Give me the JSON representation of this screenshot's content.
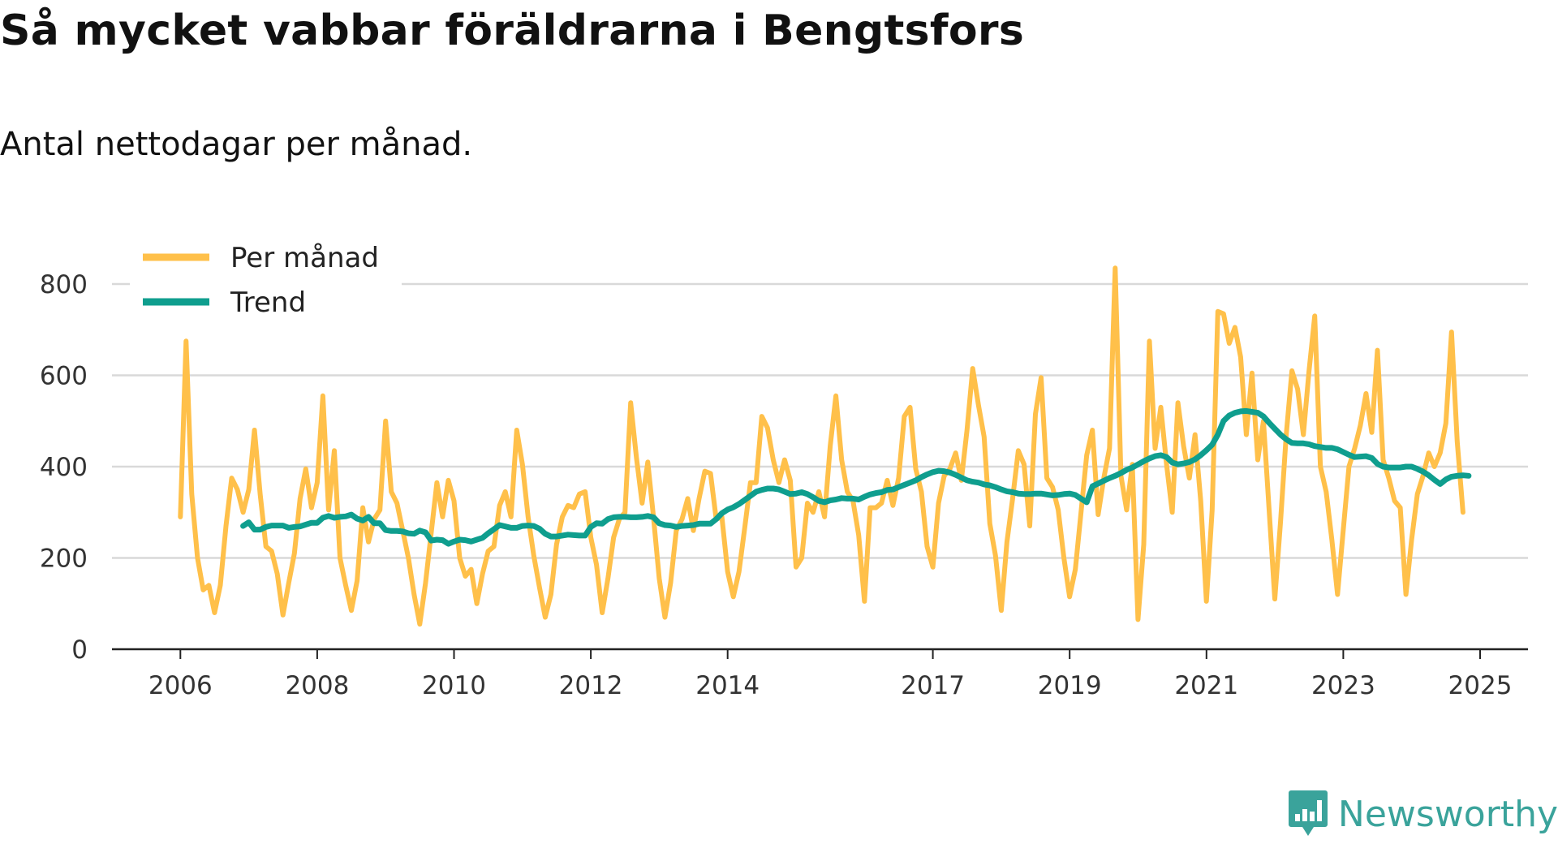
{
  "title": "Så mycket vabbar föräldrarna i Bengtsfors",
  "subtitle": "Antal nettodagar per månad.",
  "brand": {
    "name": "Newsworthy",
    "icon": "newsworthy-logo-icon",
    "color": "#3aa39b"
  },
  "colors": {
    "per_manad": "#ffc04a",
    "trend": "#0f9e8e",
    "grid": "#d9d9d9",
    "axis": "#222222"
  },
  "chart_data": {
    "type": "line",
    "title": "Så mycket vabbar föräldrarna i Bengtsfors",
    "subtitle": "Antal nettodagar per månad.",
    "xlabel": "",
    "ylabel": "",
    "xlim": [
      2005.0,
      2025.7
    ],
    "ylim": [
      0,
      800
    ],
    "yticks": [
      0,
      200,
      400,
      600,
      800
    ],
    "xticks": [
      {
        "value": 2006,
        "label": "2006"
      },
      {
        "value": 2008,
        "label": "2008"
      },
      {
        "value": 2010,
        "label": "2010"
      },
      {
        "value": 2012,
        "label": "2012"
      },
      {
        "value": 2014,
        "label": "2014"
      },
      {
        "value": 2017,
        "label": "2017"
      },
      {
        "value": 2019,
        "label": "2019"
      },
      {
        "value": 2021,
        "label": "2021"
      },
      {
        "value": 2023,
        "label": "2023"
      },
      {
        "value": 2025,
        "label": "2025"
      }
    ],
    "grid": true,
    "legend_position": "top-left",
    "series": [
      {
        "name": "Per månad",
        "color": "#ffc04a",
        "start_year": 2006.0,
        "step": 0.08333,
        "values": [
          290,
          675,
          340,
          200,
          130,
          140,
          80,
          140,
          270,
          375,
          350,
          300,
          350,
          480,
          340,
          225,
          215,
          165,
          75,
          145,
          210,
          330,
          395,
          310,
          365,
          555,
          305,
          435,
          200,
          140,
          85,
          150,
          310,
          235,
          285,
          305,
          500,
          345,
          320,
          260,
          200,
          120,
          55,
          145,
          255,
          365,
          290,
          370,
          325,
          200,
          160,
          175,
          100,
          165,
          215,
          225,
          315,
          345,
          290,
          480,
          405,
          290,
          205,
          135,
          70,
          120,
          230,
          290,
          315,
          310,
          340,
          345,
          245,
          185,
          80,
          155,
          245,
          285,
          300,
          540,
          420,
          320,
          410,
          290,
          155,
          70,
          145,
          260,
          285,
          330,
          260,
          330,
          390,
          385,
          285,
          290,
          170,
          115,
          170,
          265,
          365,
          365,
          510,
          485,
          415,
          365,
          415,
          370,
          180,
          200,
          320,
          300,
          345,
          290,
          445,
          555,
          415,
          345,
          325,
          250,
          105,
          310,
          310,
          320,
          370,
          315,
          375,
          510,
          530,
          395,
          345,
          225,
          180,
          320,
          380,
          395,
          430,
          370,
          480,
          615,
          535,
          465,
          275,
          205,
          85,
          235,
          330,
          435,
          405,
          270,
          515,
          595,
          375,
          355,
          305,
          200,
          115,
          175,
          300,
          425,
          480,
          295,
          375,
          440,
          835,
          380,
          305,
          405,
          65,
          230,
          675,
          440,
          530,
          405,
          300,
          540,
          445,
          375,
          470,
          325,
          105,
          305,
          740,
          735,
          670,
          705,
          640,
          470,
          605,
          415,
          500,
          305,
          110,
          280,
          470,
          610,
          570,
          470,
          610,
          730,
          400,
          345,
          240,
          120,
          260,
          400,
          440,
          490,
          560,
          475,
          655,
          415,
          375,
          325,
          310,
          120,
          240,
          340,
          380,
          430,
          400,
          430,
          495,
          695,
          455,
          300
        ]
      },
      {
        "name": "Trend",
        "color": "#0f9e8e",
        "start_year": 2006.9167,
        "step": 0.08333,
        "values": [
          270,
          278,
          262,
          262,
          268,
          271,
          271,
          271,
          266,
          268,
          269,
          273,
          277,
          277,
          288,
          292,
          288,
          290,
          291,
          295,
          286,
          282,
          290,
          276,
          276,
          261,
          259,
          259,
          258,
          254,
          253,
          260,
          256,
          238,
          240,
          239,
          231,
          236,
          240,
          239,
          236,
          240,
          244,
          254,
          263,
          272,
          269,
          266,
          266,
          270,
          271,
          270,
          264,
          253,
          247,
          247,
          249,
          251,
          250,
          249,
          249,
          268,
          276,
          275,
          285,
          289,
          290,
          290,
          289,
          289,
          290,
          292,
          289,
          276,
          272,
          271,
          268,
          270,
          271,
          272,
          275,
          275,
          275,
          285,
          298,
          306,
          311,
          318,
          327,
          336,
          345,
          349,
          352,
          352,
          350,
          345,
          340,
          341,
          344,
          340,
          333,
          325,
          322,
          326,
          328,
          331,
          330,
          330,
          328,
          334,
          339,
          342,
          344,
          349,
          350,
          355,
          360,
          365,
          370,
          377,
          383,
          388,
          391,
          390,
          387,
          382,
          376,
          370,
          367,
          365,
          361,
          359,
          355,
          350,
          346,
          344,
          341,
          340,
          340,
          341,
          341,
          339,
          337,
          338,
          340,
          341,
          338,
          330,
          322,
          357,
          363,
          369,
          375,
          380,
          386,
          393,
          398,
          405,
          412,
          418,
          423,
          425,
          421,
          409,
          405,
          407,
          410,
          416,
          425,
          436,
          448,
          470,
          500,
          512,
          518,
          521,
          522,
          520,
          518,
          510,
          496,
          483,
          470,
          460,
          452,
          451,
          451,
          449,
          445,
          443,
          441,
          441,
          438,
          432,
          426,
          421,
          422,
          423,
          419,
          406,
          400,
          398,
          398,
          398,
          400,
          400,
          395,
          389,
          381,
          371,
          362,
          372,
          378,
          380,
          381,
          380
        ]
      }
    ]
  }
}
